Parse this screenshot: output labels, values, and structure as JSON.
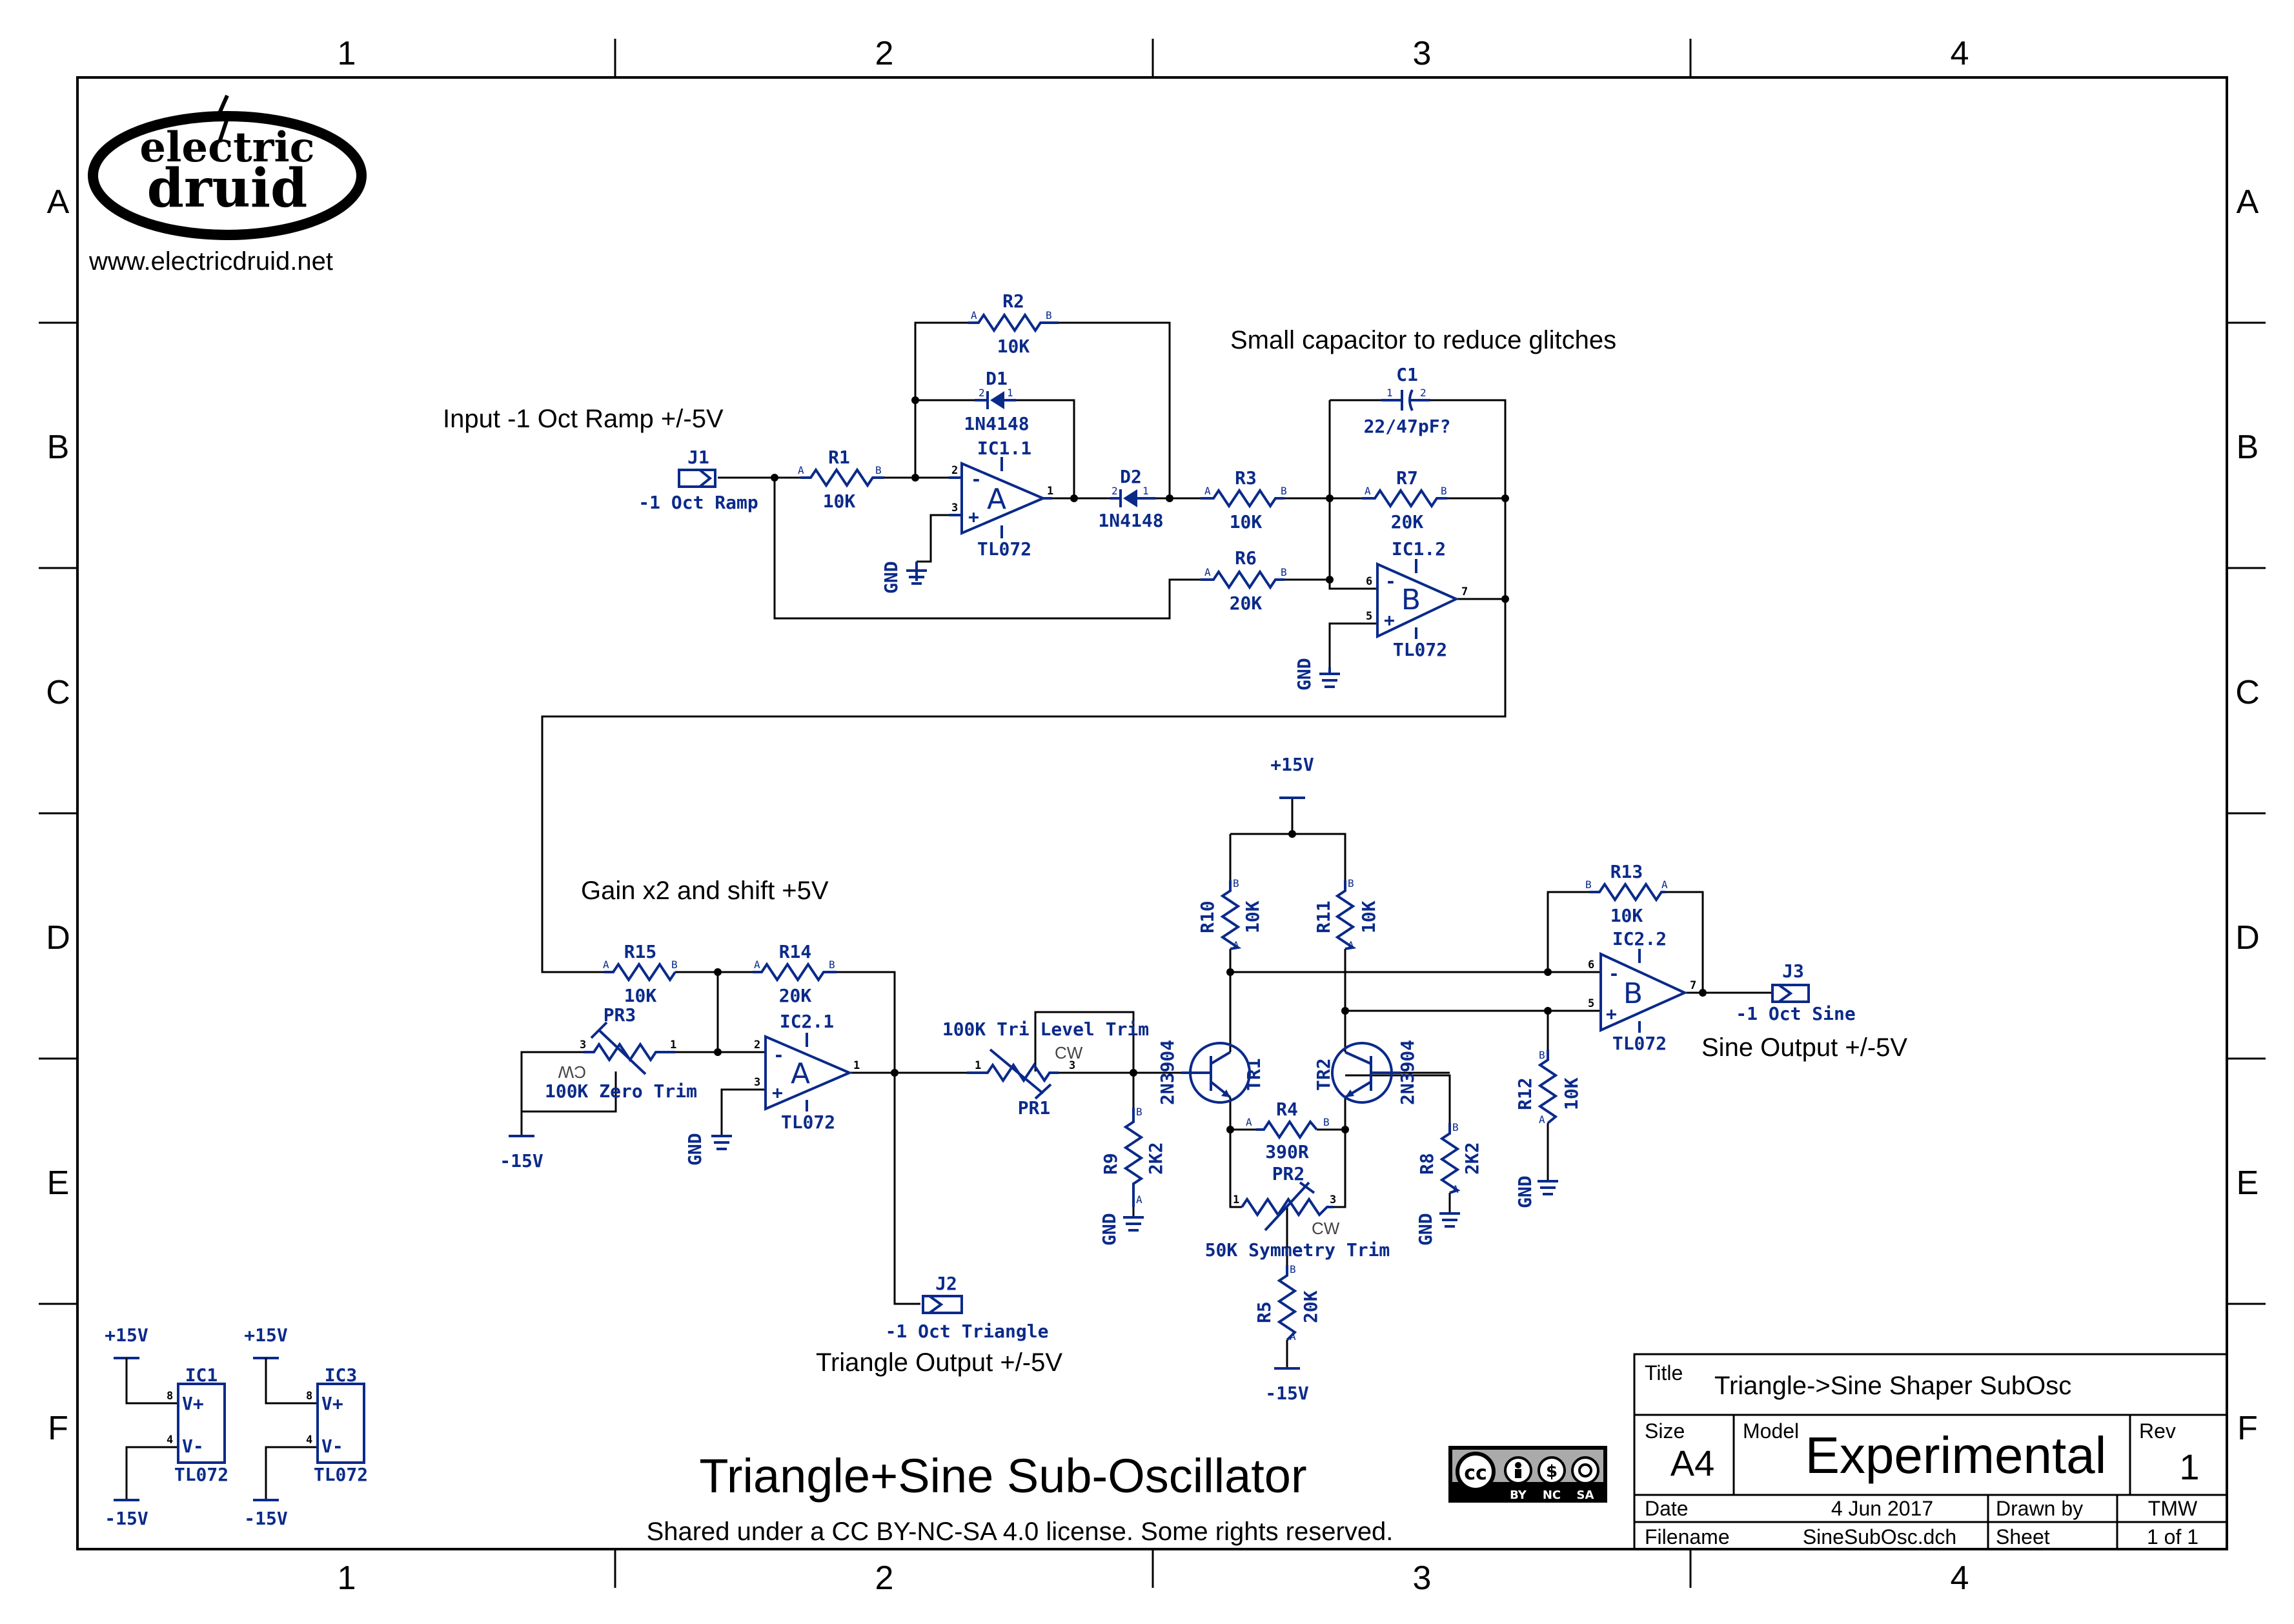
{
  "grid": {
    "columns": [
      "1",
      "2",
      "3",
      "4"
    ],
    "rows": [
      "A",
      "B",
      "C",
      "D",
      "E",
      "F"
    ]
  },
  "logo": {
    "line1": "electric",
    "line2": "druid",
    "url": "www.electricdruid.net"
  },
  "notes": {
    "input": "Input -1 Oct Ramp +/-5V",
    "capacitor": "Small capacitor to reduce glitches",
    "gain": "Gain x2 and shift +5V",
    "sine_out": "Sine Output +/-5V",
    "triangle_out": "Triangle Output +/-5V"
  },
  "components": {
    "J1": {
      "ref": "J1",
      "value": "-1 Oct Ramp"
    },
    "J2": {
      "ref": "J2",
      "value": "-1 Oct Triangle"
    },
    "J3": {
      "ref": "J3",
      "value": "-1 Oct Sine"
    },
    "R1": {
      "ref": "R1",
      "value": "10K"
    },
    "R2": {
      "ref": "R2",
      "value": "10K"
    },
    "R3": {
      "ref": "R3",
      "value": "10K"
    },
    "R4": {
      "ref": "R4",
      "value": "390R"
    },
    "R5": {
      "ref": "R5",
      "value": "20K"
    },
    "R6": {
      "ref": "R6",
      "value": "20K"
    },
    "R7": {
      "ref": "R7",
      "value": "20K"
    },
    "R8": {
      "ref": "R8",
      "value": "2K2"
    },
    "R9": {
      "ref": "R9",
      "value": "2K2"
    },
    "R10": {
      "ref": "R10",
      "value": "10K"
    },
    "R11": {
      "ref": "R11",
      "value": "10K"
    },
    "R12": {
      "ref": "R12",
      "value": "10K"
    },
    "R13": {
      "ref": "R13",
      "value": "10K"
    },
    "R14": {
      "ref": "R14",
      "value": "20K"
    },
    "R15": {
      "ref": "R15",
      "value": "10K"
    },
    "C1": {
      "ref": "C1",
      "value": "22/47pF?"
    },
    "D1": {
      "ref": "D1",
      "value": "1N4148"
    },
    "D2": {
      "ref": "D2",
      "value": "1N4148"
    },
    "IC1_1": {
      "ref": "IC1.1",
      "value": "TL072",
      "unit": "A"
    },
    "IC1_2": {
      "ref": "IC1.2",
      "value": "TL072",
      "unit": "B"
    },
    "IC2_1": {
      "ref": "IC2.1",
      "value": "TL072",
      "unit": "A"
    },
    "IC2_2": {
      "ref": "IC2.2",
      "value": "TL072",
      "unit": "B"
    },
    "TR1": {
      "ref": "TR1",
      "value": "2N3904"
    },
    "TR2": {
      "ref": "TR2",
      "value": "2N3904"
    },
    "PR1": {
      "ref": "PR1",
      "value": "100K Tri Level Trim",
      "cw": "CW"
    },
    "PR2": {
      "ref": "PR2",
      "value": "50K Symmetry Trim",
      "cw": "CW"
    },
    "PR3": {
      "ref": "PR3",
      "value": "100K Zero Trim",
      "cw": "CW"
    },
    "IC1": {
      "ref": "IC1",
      "value": "TL072",
      "vplus": "V+",
      "vminus": "V-"
    },
    "IC3": {
      "ref": "IC3",
      "value": "TL072",
      "vplus": "V+",
      "vminus": "V-"
    }
  },
  "rails": {
    "gnd": "GND",
    "pos15": "+15V",
    "neg15": "-15V"
  },
  "pin_labels": {
    "a": "A",
    "b": "B",
    "minus": "-",
    "plus": "+"
  },
  "title_block": {
    "heading": "Triangle+Sine Sub-Oscillator",
    "license": "Shared under a CC BY-NC-SA 4.0 license. Some rights reserved.",
    "cc_badge": [
      "BY",
      "NC",
      "SA"
    ],
    "title_label": "Title",
    "title": "Triangle->Sine Shaper SubOsc",
    "size_label": "Size",
    "size": "A4",
    "model_label": "Model",
    "model": "Experimental",
    "rev_label": "Rev",
    "rev": "1",
    "date_label": "Date",
    "date": "4 Jun 2017",
    "drawnby_label": "Drawn by",
    "drawnby": "TMW",
    "filename_label": "Filename",
    "filename": "SineSubOsc.dch",
    "sheet_label": "Sheet",
    "sheet": "1 of 1"
  },
  "colors": {
    "component": "#0a2a8a",
    "wire": "#000000",
    "background": "#ffffff"
  }
}
